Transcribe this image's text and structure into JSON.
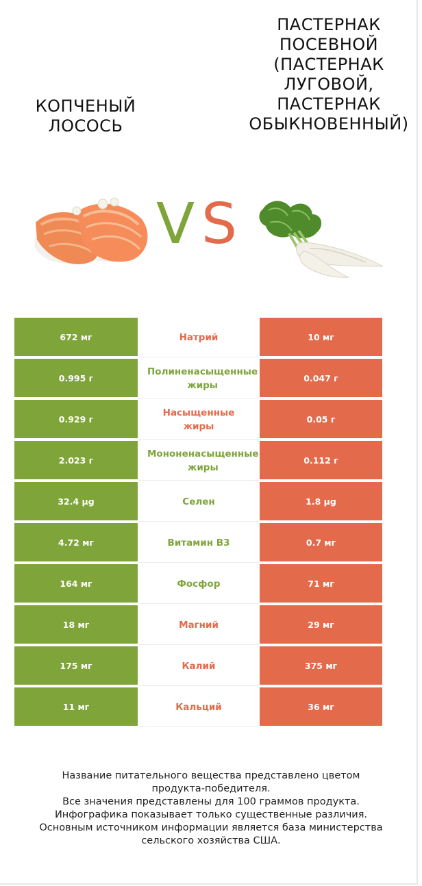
{
  "left_title": "копченый лосось",
  "right_title_lines": [
    "Пастернак",
    "посевной",
    "(Пастернак",
    "луговой,",
    "Пастернак",
    "обыкновенный)"
  ],
  "vs": {
    "v": "V",
    "s": "S"
  },
  "colors": {
    "left": "#7ea43a",
    "right": "#e36a4b"
  },
  "rows": [
    {
      "left": "672 мг",
      "nutrient": [
        "Натрий"
      ],
      "right": "10 мг",
      "winner": "right"
    },
    {
      "left": "0.995 г",
      "nutrient": [
        "Полиненасыщенные",
        "жиры"
      ],
      "right": "0.047 г",
      "winner": "left"
    },
    {
      "left": "0.929 г",
      "nutrient": [
        "Насыщенные",
        "жиры"
      ],
      "right": "0.05 г",
      "winner": "right"
    },
    {
      "left": "2.023 г",
      "nutrient": [
        "Мононенасыщенные",
        "жиры"
      ],
      "right": "0.112 г",
      "winner": "left"
    },
    {
      "left": "32.4 µg",
      "nutrient": [
        "Селен"
      ],
      "right": "1.8 µg",
      "winner": "left"
    },
    {
      "left": "4.72 мг",
      "nutrient": [
        "Витамин B3"
      ],
      "right": "0.7 мг",
      "winner": "left"
    },
    {
      "left": "164 мг",
      "nutrient": [
        "Фосфор"
      ],
      "right": "71 мг",
      "winner": "left"
    },
    {
      "left": "18 мг",
      "nutrient": [
        "Магний"
      ],
      "right": "29 мг",
      "winner": "right"
    },
    {
      "left": "175 мг",
      "nutrient": [
        "Калий"
      ],
      "right": "375 мг",
      "winner": "right"
    },
    {
      "left": "11 мг",
      "nutrient": [
        "Кальций"
      ],
      "right": "36 мг",
      "winner": "right"
    }
  ],
  "footer": [
    "Название питательного вещества представлено цветом",
    "продукта-победителя.",
    "Все значения представлены для 100 граммов продукта.",
    "Инфографика показывает только существенные различия.",
    "Основным источником информации является база министерства",
    "сельского хозяйства США."
  ]
}
